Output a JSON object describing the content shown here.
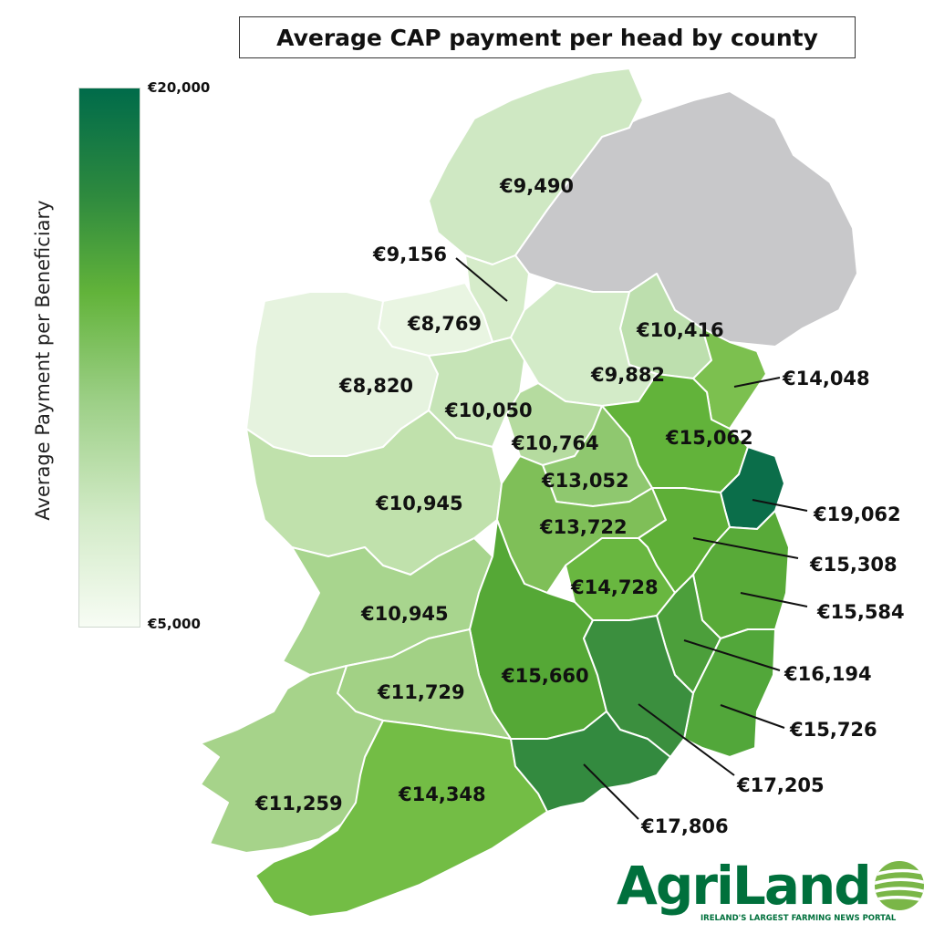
{
  "title": "Average CAP payment per head by county",
  "legend": {
    "axis_label": "Average Payment per Beneficiary",
    "max_label": "€20,000",
    "min_label": "€5,000",
    "max_value": 20000,
    "min_value": 5000,
    "color_high": "#006b4a",
    "color_low": "#f7fcf4"
  },
  "no_data_color": "#c8c8ca",
  "counties": [
    {
      "label": "€9,490",
      "value": 9490,
      "color": "#cfe8c3"
    },
    {
      "label": "€9,156",
      "value": 9156,
      "color": "#d6ecca"
    },
    {
      "label": "€8,769",
      "value": 8769,
      "color": "#e9f5e2"
    },
    {
      "label": "€8,820",
      "value": 8820,
      "color": "#e6f3df"
    },
    {
      "label": "€10,050",
      "value": 10050,
      "color": "#c6e4b7"
    },
    {
      "label": "€10,416",
      "value": 10416,
      "color": "#bddfae"
    },
    {
      "label": "€9,882",
      "value": 9882,
      "color": "#d3ebc8"
    },
    {
      "label": "€14,048",
      "value": 14048,
      "color": "#7cc04f"
    },
    {
      "label": "€10,764",
      "value": 10764,
      "color": "#b5db9f"
    },
    {
      "label": "€15,062",
      "value": 15062,
      "color": "#62b33a"
    },
    {
      "label": "€13,052",
      "value": 13052,
      "color": "#8fc86f"
    },
    {
      "label": "€10,945",
      "value": 10945,
      "color": "#c0e1ac"
    },
    {
      "label": "€19,062",
      "value": 19062,
      "color": "#0b6e4a"
    },
    {
      "label": "€13,722",
      "value": 13722,
      "color": "#7fbf58"
    },
    {
      "label": "€15,308",
      "value": 15308,
      "color": "#5eaf37"
    },
    {
      "label": "€14,728",
      "value": 14728,
      "color": "#69b740"
    },
    {
      "label": "€15,584",
      "value": 15584,
      "color": "#58aa38"
    },
    {
      "label": "€10,945",
      "value": 10945,
      "color": "#a8d58e"
    },
    {
      "label": "€16,194",
      "value": 16194,
      "color": "#4c9f3b"
    },
    {
      "label": "€15,660",
      "value": 15660,
      "color": "#55a836"
    },
    {
      "label": "€11,729",
      "value": 11729,
      "color": "#a2d185"
    },
    {
      "label": "€15,726",
      "value": 15726,
      "color": "#52a73a"
    },
    {
      "label": "€17,205",
      "value": 17205,
      "color": "#3b8f3e"
    },
    {
      "label": "€11,259",
      "value": 11259,
      "color": "#a6d38a"
    },
    {
      "label": "€14,348",
      "value": 14348,
      "color": "#73bd45"
    },
    {
      "label": "€17,806",
      "value": 17806,
      "color": "#338a3f"
    }
  ],
  "logo": {
    "name": "AgriLand",
    "tagline": "IRELAND'S LARGEST FARMING NEWS PORTAL"
  }
}
